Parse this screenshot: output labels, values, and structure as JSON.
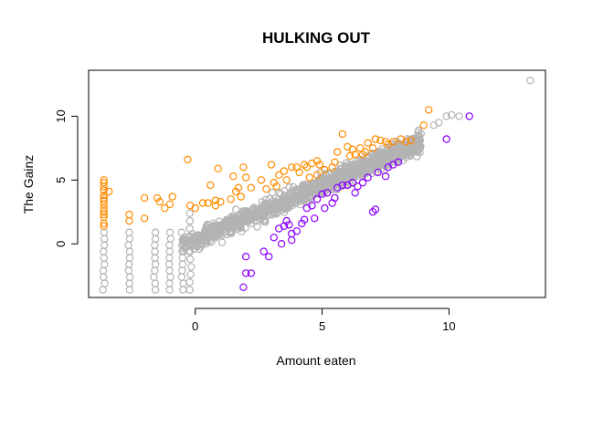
{
  "chart_data": {
    "type": "scatter",
    "title": "HULKING OUT",
    "xlabel": "Amount eaten",
    "ylabel": "The Gainz",
    "xlim": [
      -4.2,
      13.8
    ],
    "ylim": [
      -4.2,
      13.6
    ],
    "xticks": [
      0,
      5,
      10
    ],
    "yticks": [
      0,
      5,
      10
    ],
    "grid": false,
    "legend": "none",
    "colors": {
      "neutral": "#b3b3b3",
      "up": "#ff8c00",
      "down": "#8b00ff"
    },
    "series": [
      {
        "key": "up",
        "color": "#ff8c00",
        "points": [
          [
            -3.6,
            5.0
          ],
          [
            -3.6,
            4.8
          ],
          [
            -3.6,
            4.5
          ],
          [
            -3.6,
            4.2
          ],
          [
            -3.6,
            3.8
          ],
          [
            -3.6,
            3.6
          ],
          [
            -3.6,
            3.4
          ],
          [
            -3.6,
            3.1
          ],
          [
            -3.6,
            2.8
          ],
          [
            -3.6,
            2.5
          ],
          [
            -3.6,
            2.3
          ],
          [
            -3.6,
            2.1
          ],
          [
            -3.6,
            1.6
          ],
          [
            -3.6,
            1.4
          ],
          [
            -3.4,
            4.1
          ],
          [
            -2.6,
            2.3
          ],
          [
            -2.6,
            1.8
          ],
          [
            -2.0,
            3.6
          ],
          [
            -2.0,
            2.0
          ],
          [
            -1.5,
            3.6
          ],
          [
            -1.4,
            3.3
          ],
          [
            -1.2,
            2.8
          ],
          [
            -1.0,
            3.1
          ],
          [
            -0.9,
            3.7
          ],
          [
            -0.3,
            6.6
          ],
          [
            -0.2,
            3.0
          ],
          [
            0.0,
            2.8
          ],
          [
            0.3,
            3.2
          ],
          [
            0.5,
            3.2
          ],
          [
            0.6,
            4.6
          ],
          [
            0.8,
            3.4
          ],
          [
            0.8,
            3.0
          ],
          [
            0.9,
            5.9
          ],
          [
            1.0,
            3.3
          ],
          [
            1.4,
            3.5
          ],
          [
            1.5,
            5.3
          ],
          [
            1.6,
            4.1
          ],
          [
            1.7,
            4.4
          ],
          [
            1.8,
            3.7
          ],
          [
            1.9,
            6.0
          ],
          [
            2.0,
            5.2
          ],
          [
            2.2,
            4.4
          ],
          [
            2.6,
            5.0
          ],
          [
            2.8,
            4.3
          ],
          [
            3.0,
            6.2
          ],
          [
            3.1,
            4.8
          ],
          [
            3.2,
            4.5
          ],
          [
            3.3,
            5.4
          ],
          [
            3.5,
            5.7
          ],
          [
            3.6,
            5.0
          ],
          [
            3.8,
            6.0
          ],
          [
            4.0,
            6.0
          ],
          [
            4.1,
            5.6
          ],
          [
            4.3,
            6.2
          ],
          [
            4.4,
            6.0
          ],
          [
            4.5,
            5.2
          ],
          [
            4.6,
            6.3
          ],
          [
            4.8,
            6.5
          ],
          [
            4.8,
            5.4
          ],
          [
            4.9,
            6.2
          ],
          [
            5.1,
            5.8
          ],
          [
            5.4,
            6.0
          ],
          [
            5.5,
            6.4
          ],
          [
            5.6,
            7.2
          ],
          [
            5.8,
            8.6
          ],
          [
            6.0,
            7.6
          ],
          [
            6.1,
            6.9
          ],
          [
            6.2,
            7.4
          ],
          [
            6.3,
            7.0
          ],
          [
            6.5,
            7.5
          ],
          [
            6.6,
            7.0
          ],
          [
            6.7,
            7.2
          ],
          [
            6.8,
            7.9
          ],
          [
            7.0,
            7.5
          ],
          [
            7.1,
            8.2
          ],
          [
            7.3,
            8.1
          ],
          [
            7.5,
            8.0
          ],
          [
            7.6,
            7.8
          ],
          [
            7.8,
            8.0
          ],
          [
            8.1,
            8.2
          ],
          [
            8.3,
            8.0
          ],
          [
            8.5,
            8.1
          ],
          [
            9.0,
            9.3
          ],
          [
            9.2,
            10.5
          ]
        ]
      },
      {
        "key": "down",
        "color": "#8b00ff",
        "points": [
          [
            1.9,
            -3.4
          ],
          [
            2.0,
            -1.0
          ],
          [
            2.0,
            -2.3
          ],
          [
            2.2,
            -2.3
          ],
          [
            2.7,
            -0.6
          ],
          [
            2.9,
            -1.0
          ],
          [
            3.1,
            0.5
          ],
          [
            3.3,
            1.2
          ],
          [
            3.4,
            0.0
          ],
          [
            3.5,
            1.4
          ],
          [
            3.6,
            1.8
          ],
          [
            3.7,
            1.5
          ],
          [
            3.8,
            0.8
          ],
          [
            3.8,
            0.3
          ],
          [
            4.0,
            1.0
          ],
          [
            4.2,
            1.6
          ],
          [
            4.3,
            1.9
          ],
          [
            4.4,
            2.8
          ],
          [
            4.6,
            3.0
          ],
          [
            4.7,
            2.0
          ],
          [
            4.8,
            3.5
          ],
          [
            5.0,
            3.9
          ],
          [
            5.1,
            2.8
          ],
          [
            5.2,
            4.0
          ],
          [
            5.4,
            3.2
          ],
          [
            5.5,
            3.6
          ],
          [
            5.6,
            4.4
          ],
          [
            5.8,
            4.6
          ],
          [
            6.0,
            4.6
          ],
          [
            6.2,
            4.8
          ],
          [
            6.3,
            4.0
          ],
          [
            6.4,
            4.5
          ],
          [
            6.6,
            4.8
          ],
          [
            6.8,
            5.2
          ],
          [
            7.0,
            2.5
          ],
          [
            7.1,
            2.7
          ],
          [
            7.2,
            5.6
          ],
          [
            7.5,
            5.3
          ],
          [
            7.6,
            6.0
          ],
          [
            7.8,
            6.2
          ],
          [
            8.0,
            6.4
          ],
          [
            9.9,
            8.2
          ],
          [
            10.8,
            10.0
          ]
        ]
      }
    ]
  }
}
